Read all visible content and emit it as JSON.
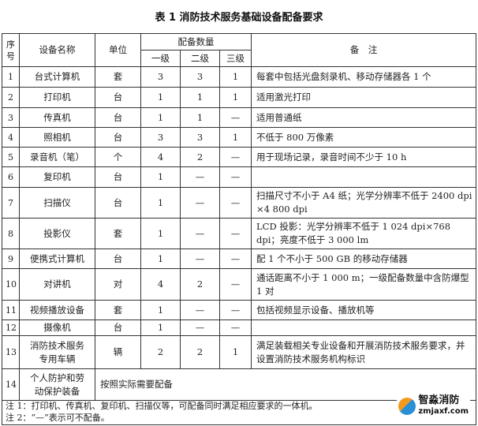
{
  "title": "表 1  消防技术服务基础设备配备要求",
  "header": {
    "seq": "序号",
    "name": "设备名称",
    "unit": "单位",
    "qty": "配备数量",
    "levels": [
      "一级",
      "二级",
      "三级"
    ],
    "remark": "备　注"
  },
  "rows": [
    {
      "seq": "1",
      "name": "台式计算机",
      "unit": "套",
      "l1": "3",
      "l2": "3",
      "l3": "1",
      "remark": "每套中包括光盘刻录机、移动存储器各 1 个"
    },
    {
      "seq": "2",
      "name": "打印机",
      "unit": "台",
      "l1": "1",
      "l2": "1",
      "l3": "1",
      "remark": "适用激光打印"
    },
    {
      "seq": "3",
      "name": "传真机",
      "unit": "台",
      "l1": "1",
      "l2": "1",
      "l3": "—",
      "remark": "适用普通纸"
    },
    {
      "seq": "4",
      "name": "照相机",
      "unit": "台",
      "l1": "3",
      "l2": "3",
      "l3": "1",
      "remark": "不低于 800 万像素"
    },
    {
      "seq": "5",
      "name": "录音机（笔）",
      "unit": "个",
      "l1": "4",
      "l2": "2",
      "l3": "—",
      "remark": "用于现场记录，录音时间不少于 10 h"
    },
    {
      "seq": "6",
      "name": "复印机",
      "unit": "台",
      "l1": "1",
      "l2": "—",
      "l3": "—",
      "remark": ""
    },
    {
      "seq": "7",
      "name": "扫描仪",
      "unit": "台",
      "l1": "1",
      "l2": "—",
      "l3": "—",
      "remark": "扫描尺寸不小于 A4 纸；光学分辨率不低于 2400 dpi ×4 800 dpi"
    },
    {
      "seq": "8",
      "name": "投影仪",
      "unit": "套",
      "l1": "1",
      "l2": "—",
      "l3": "—",
      "remark": "LCD 投影：光学分辨率不低于 1 024 dpi×768 dpi；亮度不低于 3 000 lm"
    },
    {
      "seq": "9",
      "name": "便携式计算机",
      "unit": "台",
      "l1": "1",
      "l2": "—",
      "l3": "—",
      "remark": "配 1 个不小于 500 GB 的移动存储器"
    },
    {
      "seq": "10",
      "name": "对讲机",
      "unit": "对",
      "l1": "4",
      "l2": "2",
      "l3": "—",
      "remark": "通话距离不小于 1 000 m；一级配备数量中含防爆型 1 对"
    },
    {
      "seq": "11",
      "name": "视频播放设备",
      "unit": "套",
      "l1": "1",
      "l2": "—",
      "l3": "—",
      "remark": "包括视频显示设备、播放机等"
    },
    {
      "seq": "12",
      "name": "摄像机",
      "unit": "台",
      "l1": "1",
      "l2": "—",
      "l3": "—",
      "remark": ""
    },
    {
      "seq": "13",
      "name": "消防技术服务专用车辆",
      "unit": "辆",
      "l1": "2",
      "l2": "2",
      "l3": "1",
      "remark": "满足装载相关专业设备和开展消防技术服务要求，并设置消防技术服务机构标识"
    }
  ],
  "last_row": {
    "seq": "14",
    "name": "个人防护和劳动保护装备",
    "remark": "按照实际需要配备"
  },
  "notes": [
    "注 1：打印机、传真机、复印机、扫描仪等，可配备同时满足相应要求的一体机。",
    "注 2：“—”表示可不配备。"
  ],
  "watermark": {
    "name": "智淼消防",
    "url": "zmjaxf.com"
  }
}
